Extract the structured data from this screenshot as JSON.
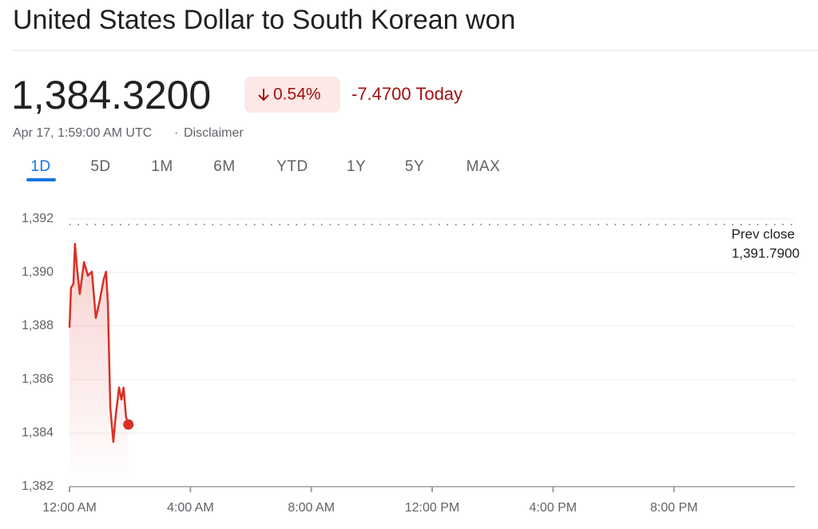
{
  "header": {
    "title": "United States Dollar to South Korean won",
    "price": "1,384.3200",
    "change_percent": "0.54%",
    "change_value": "-7.4700 Today",
    "timestamp": "Apr 17, 1:59:00 AM UTC",
    "separator": "·",
    "disclaimer": "Disclaimer",
    "tabs": [
      "1D",
      "5D",
      "1M",
      "6M",
      "YTD",
      "1Y",
      "5Y",
      "MAX"
    ]
  },
  "chart_data": {
    "type": "line",
    "x": [
      0,
      0.05,
      0.13,
      0.18,
      0.26,
      0.34,
      0.48,
      0.61,
      0.74,
      0.87,
      0.98,
      1.13,
      1.21,
      1.27,
      1.35,
      1.45,
      1.53,
      1.64,
      1.72,
      1.79,
      1.87,
      1.95
    ],
    "series": [
      {
        "color": "#d93025",
        "values": [
          1387.94,
          1389.43,
          1389.58,
          1391.07,
          1390.03,
          1389.19,
          1390.39,
          1389.88,
          1390.03,
          1388.3,
          1388.84,
          1389.73,
          1390.03,
          1388.84,
          1384.96,
          1383.67,
          1384.66,
          1385.7,
          1385.25,
          1385.7,
          1384.6,
          1384.32
        ]
      }
    ],
    "xlim": [
      0,
      24
    ],
    "xticks": [
      {
        "value": 0,
        "label": "12:00 AM"
      },
      {
        "value": 4,
        "label": "4:00 AM"
      },
      {
        "value": 8,
        "label": "8:00 AM"
      },
      {
        "value": 12,
        "label": "12:00 PM"
      },
      {
        "value": 16,
        "label": "4:00 PM"
      },
      {
        "value": 20,
        "label": "8:00 PM"
      }
    ],
    "ylim": [
      1382,
      1392
    ],
    "yticks": [
      {
        "value": 1382,
        "label": "1,382"
      },
      {
        "value": 1384,
        "label": "1,384"
      },
      {
        "value": 1386,
        "label": "1,386"
      },
      {
        "value": 1388,
        "label": "1,388"
      },
      {
        "value": 1390,
        "label": "1,390"
      },
      {
        "value": 1392,
        "label": "1,392"
      }
    ],
    "grid": true,
    "prev_close_label": "Prev close",
    "prev_close": 1391.79,
    "prev_close_text": "1,391.7900"
  }
}
